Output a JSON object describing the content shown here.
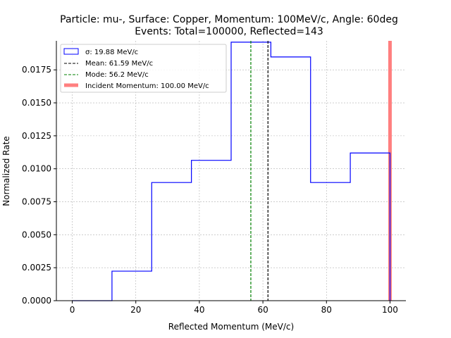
{
  "chart_data": {
    "type": "histogram",
    "title_line1": "Particle: mu-, Surface: Copper, Momentum: 100MeV/c, Angle: 60deg",
    "title_line2": "Events: Total=100000, Reflected=143",
    "xlabel": "Reflected Momentum (MeV/c)",
    "ylabel": "Normalized Rate",
    "xlim": [
      -5,
      105
    ],
    "ylim": [
      0,
      0.0197
    ],
    "xticks": [
      0,
      20,
      40,
      60,
      80,
      100
    ],
    "yticks": [
      0.0,
      0.0025,
      0.005,
      0.0075,
      0.01,
      0.0125,
      0.015,
      0.0175
    ],
    "ytick_labels": [
      "0.0000",
      "0.0025",
      "0.0050",
      "0.0075",
      "0.0100",
      "0.0125",
      "0.0150",
      "0.0175"
    ],
    "grid": true,
    "bin_edges": [
      0,
      12.5,
      25,
      37.5,
      50,
      62.5,
      75,
      87.5,
      100
    ],
    "values": [
      0.0,
      0.00224,
      0.00896,
      0.01064,
      0.0196,
      0.01848,
      0.00896,
      0.0112
    ],
    "vlines": {
      "mean": 61.59,
      "mode": 56.2,
      "incident": 100.0
    },
    "legend": {
      "position": "top-left",
      "entries": [
        {
          "key": "sigma",
          "label": "σ: 19.88 MeV/c",
          "style": "box",
          "color": "#0000ff"
        },
        {
          "key": "mean",
          "label": "Mean: 61.59 MeV/c",
          "style": "dashed",
          "color": "#000000"
        },
        {
          "key": "mode",
          "label": "Mode: 56.2 MeV/c",
          "style": "dashed",
          "color": "#008000"
        },
        {
          "key": "incident",
          "label": "Incident Momentum: 100.00 MeV/c",
          "style": "thick",
          "color": "#ff7f7f"
        }
      ]
    },
    "colors": {
      "hist": "#0000ff",
      "mean": "#000000",
      "mode": "#008000",
      "incident": "#ff7f7f",
      "grid": "#b0b0b0"
    }
  }
}
